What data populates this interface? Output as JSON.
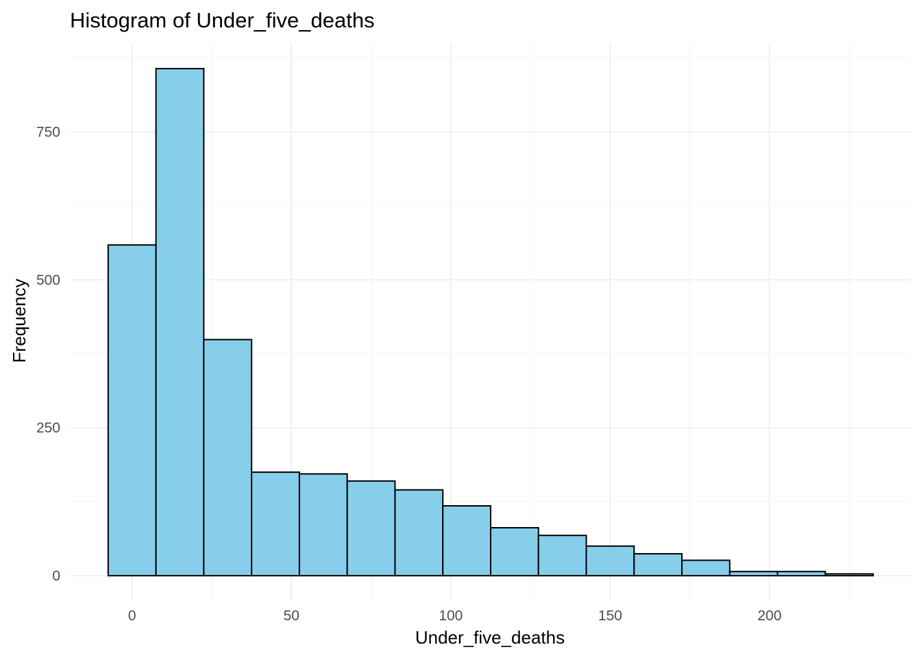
{
  "chart_data": {
    "type": "bar",
    "title": "Histogram of Under_five_deaths",
    "xlabel": "Under_five_deaths",
    "ylabel": "Frequency",
    "bin_width": 15,
    "bins": [
      {
        "x0": -7.5,
        "x1": 7.5,
        "count": 559
      },
      {
        "x0": 7.5,
        "x1": 22.5,
        "count": 857
      },
      {
        "x0": 22.5,
        "x1": 37.5,
        "count": 399
      },
      {
        "x0": 37.5,
        "x1": 52.5,
        "count": 175
      },
      {
        "x0": 52.5,
        "x1": 67.5,
        "count": 172
      },
      {
        "x0": 67.5,
        "x1": 82.5,
        "count": 160
      },
      {
        "x0": 82.5,
        "x1": 97.5,
        "count": 145
      },
      {
        "x0": 97.5,
        "x1": 112.5,
        "count": 118
      },
      {
        "x0": 112.5,
        "x1": 127.5,
        "count": 81
      },
      {
        "x0": 127.5,
        "x1": 142.5,
        "count": 68
      },
      {
        "x0": 142.5,
        "x1": 157.5,
        "count": 50
      },
      {
        "x0": 157.5,
        "x1": 172.5,
        "count": 37
      },
      {
        "x0": 172.5,
        "x1": 187.5,
        "count": 26
      },
      {
        "x0": 187.5,
        "x1": 202.5,
        "count": 7
      },
      {
        "x0": 202.5,
        "x1": 217.5,
        "count": 7
      },
      {
        "x0": 217.5,
        "x1": 232.5,
        "count": 3
      }
    ],
    "xlim": [
      -19.5,
      244.5
    ],
    "ylim": [
      -43,
      900
    ],
    "x_ticks": [
      0,
      50,
      100,
      150,
      200
    ],
    "x_tick_labels": [
      "0",
      "50",
      "100",
      "150",
      "200"
    ],
    "y_ticks": [
      0,
      250,
      500,
      750
    ],
    "y_tick_labels": [
      "0",
      "250",
      "500",
      "750"
    ],
    "x_minor_ticks": [
      25,
      75,
      125,
      175,
      225
    ],
    "y_minor_ticks": [
      125,
      375,
      625,
      875
    ],
    "grid": true,
    "legend": "none",
    "colors": {
      "bar_fill": "#87ceeb",
      "bar_outline": "#000000",
      "grid": "#ebebeb",
      "tick_text": "#4d4d4d"
    }
  }
}
